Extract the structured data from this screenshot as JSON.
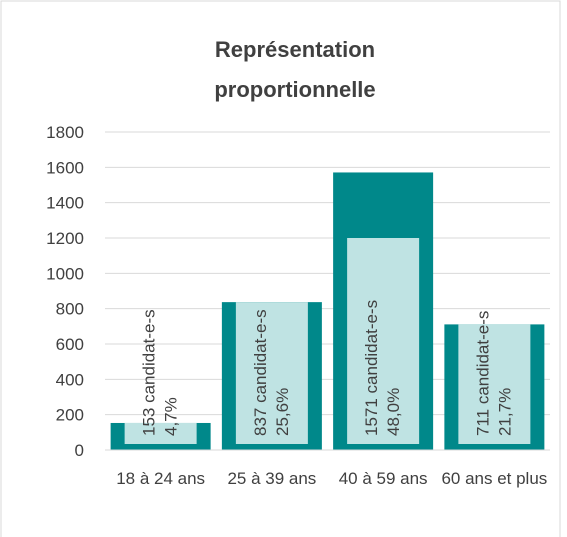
{
  "chart_data": {
    "type": "bar",
    "title": "Représentation proportionnelle",
    "categories": [
      "18 à 24 ans",
      "25 à 39 ans",
      "40 à 59 ans",
      "60 ans et plus"
    ],
    "values": [
      153,
      837,
      1571,
      711
    ],
    "value_labels": [
      "153 candidat-e-s",
      "837 candidat-e-s",
      "1571 candidat-e-s",
      "711 candidat-e-s"
    ],
    "percent_labels": [
      "4,7%",
      "25,6%",
      "48,0%",
      "21,7%"
    ],
    "color": "#00888a",
    "label_box_color": "#bfe3e3",
    "ylim": [
      0,
      1800
    ],
    "yticks": [
      0,
      200,
      400,
      600,
      800,
      1000,
      1200,
      1400,
      1600,
      1800
    ],
    "grid": true
  }
}
